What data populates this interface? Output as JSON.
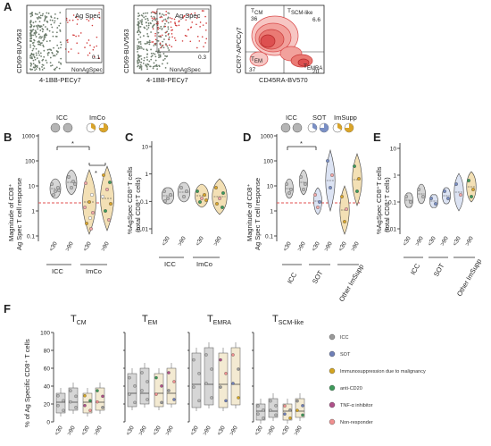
{
  "panel_labels": {
    "A": "A",
    "B": "B",
    "C": "C",
    "D": "D",
    "E": "E",
    "F": "F"
  },
  "panel_a": {
    "plot1": {
      "ylabel": "CD69-BUV563",
      "xlabel": "4-1BB-PECy7",
      "gate_top": "Ag Spec",
      "gate_bottom": "NonAgSpec",
      "value": "0.1"
    },
    "plot2": {
      "ylabel": "CD69-BUV563",
      "xlabel": "4-1BB-PECy7",
      "gate_top": "Ag Spec",
      "gate_bottom": "NonAgSpec",
      "value": "0.3"
    },
    "plot3": {
      "ylabel": "CCR7-APCCy7",
      "xlabel": "CD45RA-BV570",
      "tcm_label": "T",
      "tcm_sub": "CM",
      "tcm_value": "36",
      "tscm_label": "T",
      "tscm_sub": "SCM-like",
      "tscm_value": "6.6",
      "tem_label": "T",
      "tem_sub": "EM",
      "tem_value": "37",
      "temra_label": "T",
      "temra_sub": "EMRA",
      "temra_value": "20"
    }
  },
  "panel_b": {
    "legend": {
      "icc": "ICC",
      "imco": "ImCo"
    },
    "ylabel_line1": "Magnitude of CD8⁺",
    "ylabel_line2": "Ag Spec T cell response",
    "yticks": [
      "1000",
      "100",
      "10",
      "1",
      "0.1"
    ],
    "xticks": [
      "<30",
      ">90",
      "<30",
      ">90"
    ],
    "groups": [
      "ICC",
      "ImCo"
    ],
    "sig": [
      "*",
      "*"
    ],
    "chart_data": {
      "type": "violin",
      "categories": [
        "ICC <30",
        "ICC >90",
        "ImCo <30",
        "ImCo >90"
      ],
      "y_scale": "log",
      "ylim": [
        0.1,
        1000
      ],
      "reference_line": 2
    }
  },
  "panel_c": {
    "ylabel_line1": "%AgSpec CD8⁺T cells",
    "ylabel_line2": "(total CD8⁺T cells)",
    "yticks": [
      "10",
      "1",
      "0.1",
      "0.01"
    ],
    "xticks": [
      "<30",
      ">90",
      "<30",
      ">90"
    ],
    "groups": [
      "ICC",
      "ImCo"
    ]
  },
  "panel_d": {
    "legend": {
      "icc": "ICC",
      "sot": "SOT",
      "imsupp": "ImSupp"
    },
    "ylabel_line1": "Magnitude of CD8⁺",
    "ylabel_line2": "Ag Spec T cell response",
    "yticks": [
      "1000",
      "100",
      "10",
      "1",
      "0.1"
    ],
    "xticks": [
      "<30",
      ">90",
      "<30",
      ">90",
      "<30",
      ">90"
    ],
    "groups": [
      "ICC",
      "SOT",
      "Other ImSupp"
    ],
    "sig": [
      "*"
    ]
  },
  "panel_e": {
    "ylabel_line1": "%AgSpec CD8⁺T cells",
    "ylabel_line2": "(total CD8⁺T cells)",
    "yticks": [
      "10",
      "1",
      "0.1",
      "0.01"
    ],
    "xticks": [
      "<30",
      ">90",
      "<30",
      ">90",
      "<30",
      ">90"
    ],
    "groups": [
      "ICC",
      "SOT",
      "Other ImSupp"
    ]
  },
  "panel_f": {
    "ylabel": "% of Ag Specific CD8⁺ T cells",
    "yticks": [
      "100",
      "80",
      "60",
      "40",
      "20",
      "0"
    ],
    "xticks": [
      "<30",
      ">90",
      "<30",
      ">90"
    ],
    "titles": [
      {
        "main": "T",
        "sub": "CM"
      },
      {
        "main": "T",
        "sub": "EM"
      },
      {
        "main": "T",
        "sub": "EMRA"
      },
      {
        "main": "T",
        "sub": "SCM-like"
      }
    ],
    "legend": [
      {
        "label": "ICC",
        "color": "#9a9a9a"
      },
      {
        "label": "SOT",
        "color": "#6f7fb8"
      },
      {
        "label": "Immunosuppression due to malignancy",
        "color": "#d4a520"
      },
      {
        "label": "anti-CD20",
        "color": "#3d9a5a"
      },
      {
        "label": "TNF-α inhibitor",
        "color": "#b0508a"
      },
      {
        "label": "Non-responder",
        "color": "#f09090"
      }
    ]
  },
  "colors": {
    "gray": "#9a9a9a",
    "gold": "#d9a42a",
    "blue": "#7a8fc4",
    "red_line": "#e05050",
    "violin_gray": "#cfcfcf"
  }
}
